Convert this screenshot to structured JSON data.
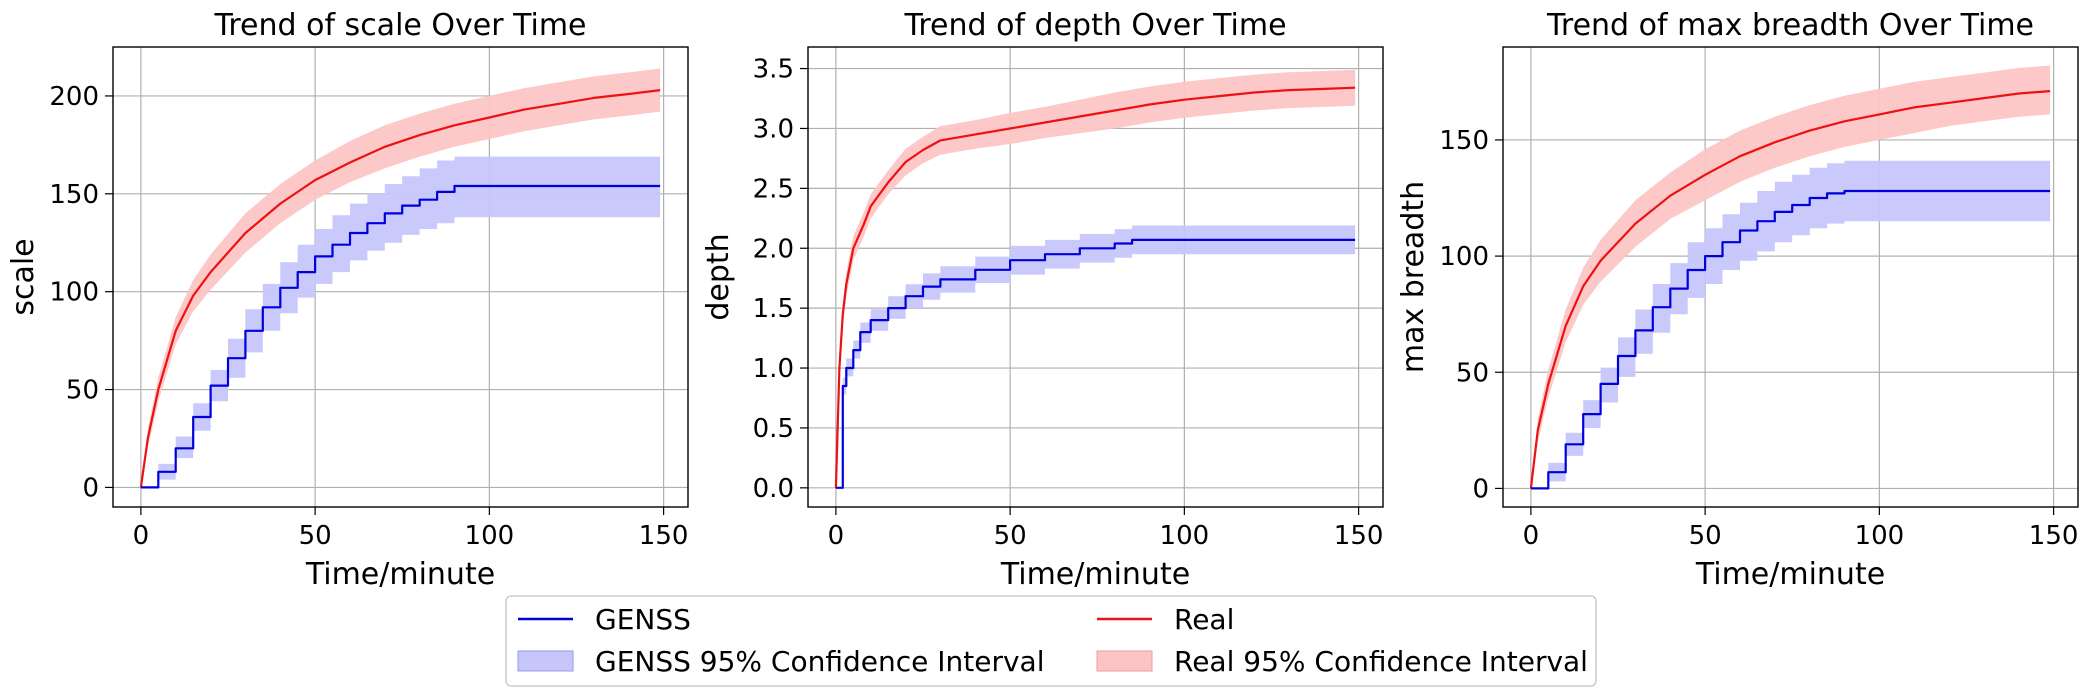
{
  "colors": {
    "genss_line": "#0000dd",
    "genss_band": "#c6c6fb",
    "real_line": "#ee1111",
    "real_band": "#fcc5c5"
  },
  "legend": {
    "placement": "bottom-center",
    "genss_label": "GENSS",
    "real_label": "Real",
    "genss_ci_label": "GENSS 95% Confidence Interval",
    "real_ci_label": "Real 95% Confidence Interval"
  },
  "chart_data": [
    {
      "type": "line",
      "title": "Trend of scale Over Time",
      "xlabel": "Time/minute",
      "ylabel": "scale",
      "xlim": [
        -8,
        157
      ],
      "ylim": [
        -10,
        225
      ],
      "xticks": [
        0,
        50,
        100,
        150
      ],
      "yticks": [
        0,
        50,
        100,
        150,
        200
      ],
      "grid": true,
      "series": [
        {
          "name": "Real",
          "x": [
            0,
            2,
            5,
            10,
            15,
            20,
            30,
            40,
            50,
            60,
            70,
            80,
            90,
            100,
            110,
            120,
            130,
            140,
            149
          ],
          "y": [
            0,
            25,
            50,
            80,
            98,
            110,
            130,
            145,
            157,
            166,
            174,
            180,
            185,
            189,
            193,
            196,
            199,
            201,
            203
          ],
          "lower": [
            0,
            20,
            44,
            73,
            90,
            101,
            120,
            135,
            147,
            156,
            163,
            169,
            174,
            178,
            182,
            185,
            188,
            190,
            192
          ],
          "upper": [
            0,
            30,
            56,
            87,
            106,
            119,
            140,
            155,
            167,
            177,
            185,
            191,
            196,
            200,
            204,
            207,
            210,
            212,
            214
          ]
        },
        {
          "name": "GENSS",
          "step": true,
          "x": [
            0,
            2,
            5,
            10,
            15,
            20,
            25,
            30,
            35,
            40,
            45,
            50,
            55,
            60,
            65,
            70,
            75,
            80,
            85,
            90,
            100,
            120,
            149
          ],
          "y": [
            0,
            0,
            8,
            20,
            36,
            52,
            66,
            80,
            92,
            102,
            110,
            118,
            124,
            130,
            135,
            140,
            144,
            147,
            151,
            154,
            154,
            154,
            154
          ],
          "lower": [
            0,
            0,
            4,
            15,
            29,
            44,
            56,
            69,
            80,
            89,
            97,
            104,
            110,
            116,
            121,
            125,
            129,
            132,
            135,
            138,
            138,
            138,
            138
          ],
          "upper": [
            0,
            0,
            12,
            26,
            43,
            60,
            76,
            91,
            104,
            115,
            124,
            132,
            139,
            145,
            150,
            155,
            159,
            163,
            167,
            169,
            169,
            169,
            169
          ]
        }
      ]
    },
    {
      "type": "line",
      "title": "Trend of depth Over Time",
      "xlabel": "Time/minute",
      "ylabel": "depth",
      "xlim": [
        -8,
        157
      ],
      "ylim": [
        -0.16,
        3.68
      ],
      "xticks": [
        0,
        50,
        100,
        150
      ],
      "yticks": [
        0.0,
        0.5,
        1.0,
        1.5,
        2.0,
        2.5,
        3.0,
        3.5
      ],
      "grid": true,
      "series": [
        {
          "name": "Real",
          "x": [
            0,
            1,
            2,
            3,
            5,
            8,
            10,
            15,
            20,
            25,
            30,
            40,
            50,
            60,
            70,
            80,
            90,
            100,
            110,
            120,
            130,
            140,
            149
          ],
          "y": [
            0,
            1.0,
            1.45,
            1.7,
            2.0,
            2.2,
            2.35,
            2.55,
            2.72,
            2.82,
            2.9,
            2.95,
            3.0,
            3.05,
            3.1,
            3.15,
            3.2,
            3.24,
            3.27,
            3.3,
            3.32,
            3.33,
            3.34
          ],
          "lower": [
            0,
            0.9,
            1.35,
            1.6,
            1.9,
            2.1,
            2.25,
            2.45,
            2.61,
            2.71,
            2.78,
            2.83,
            2.87,
            2.92,
            2.96,
            3.0,
            3.05,
            3.09,
            3.12,
            3.15,
            3.17,
            3.18,
            3.19
          ],
          "upper": [
            0,
            1.1,
            1.55,
            1.8,
            2.1,
            2.3,
            2.45,
            2.65,
            2.83,
            2.93,
            3.02,
            3.07,
            3.13,
            3.18,
            3.24,
            3.3,
            3.35,
            3.39,
            3.42,
            3.45,
            3.47,
            3.48,
            3.49
          ]
        },
        {
          "name": "GENSS",
          "step": true,
          "x": [
            0,
            1,
            2,
            3,
            5,
            7,
            10,
            15,
            20,
            25,
            30,
            40,
            50,
            60,
            70,
            80,
            85,
            100,
            120,
            149
          ],
          "y": [
            0,
            0,
            0.85,
            1.0,
            1.15,
            1.3,
            1.4,
            1.5,
            1.6,
            1.68,
            1.74,
            1.82,
            1.9,
            1.95,
            2.0,
            2.04,
            2.07,
            2.07,
            2.07,
            2.07
          ],
          "lower": [
            0,
            0,
            0.78,
            0.93,
            1.08,
            1.21,
            1.31,
            1.41,
            1.5,
            1.57,
            1.63,
            1.71,
            1.78,
            1.83,
            1.88,
            1.92,
            1.95,
            1.95,
            1.95,
            1.95
          ],
          "upper": [
            0,
            0,
            0.92,
            1.08,
            1.23,
            1.38,
            1.49,
            1.6,
            1.7,
            1.79,
            1.85,
            1.93,
            2.02,
            2.07,
            2.12,
            2.16,
            2.19,
            2.19,
            2.19,
            2.19
          ]
        }
      ]
    },
    {
      "type": "line",
      "title": "Trend of max breadth Over Time",
      "xlabel": "Time/minute",
      "ylabel": "max breadth",
      "xlim": [
        -8,
        157
      ],
      "ylim": [
        -8,
        190
      ],
      "xticks": [
        0,
        50,
        100,
        150
      ],
      "yticks": [
        0,
        50,
        100,
        150
      ],
      "grid": true,
      "series": [
        {
          "name": "Real",
          "x": [
            0,
            2,
            5,
            10,
            15,
            20,
            30,
            40,
            50,
            60,
            70,
            80,
            90,
            100,
            110,
            120,
            130,
            140,
            149
          ],
          "y": [
            0,
            25,
            45,
            70,
            87,
            98,
            114,
            126,
            135,
            143,
            149,
            154,
            158,
            161,
            164,
            166,
            168,
            170,
            171
          ],
          "lower": [
            0,
            20,
            39,
            63,
            79,
            89,
            104,
            116,
            124,
            132,
            138,
            143,
            147,
            150,
            153,
            156,
            158,
            160,
            161
          ],
          "upper": [
            0,
            30,
            51,
            77,
            95,
            107,
            124,
            136,
            146,
            154,
            160,
            165,
            169,
            172,
            175,
            177,
            179,
            181,
            182
          ]
        },
        {
          "name": "GENSS",
          "step": true,
          "x": [
            0,
            2,
            5,
            10,
            15,
            20,
            25,
            30,
            35,
            40,
            45,
            50,
            55,
            60,
            65,
            70,
            75,
            80,
            85,
            90,
            100,
            120,
            149
          ],
          "y": [
            0,
            0,
            7,
            19,
            32,
            45,
            57,
            68,
            78,
            86,
            94,
            100,
            106,
            111,
            115,
            119,
            122,
            125,
            127,
            128,
            128,
            128,
            128
          ],
          "lower": [
            0,
            0,
            3,
            14,
            26,
            37,
            48,
            58,
            67,
            75,
            82,
            88,
            94,
            98,
            102,
            106,
            109,
            112,
            114,
            115,
            115,
            115,
            115
          ],
          "upper": [
            0,
            0,
            11,
            24,
            38,
            52,
            65,
            77,
            88,
            97,
            106,
            112,
            118,
            123,
            128,
            132,
            135,
            138,
            140,
            141,
            141,
            141,
            141
          ]
        }
      ]
    }
  ]
}
